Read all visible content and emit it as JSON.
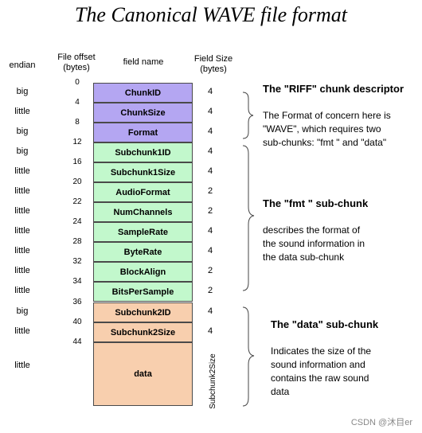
{
  "title": "The Canonical WAVE file format",
  "headers": {
    "endian": "endian",
    "file_offset": [
      "File offset",
      "(bytes)"
    ],
    "field_name": "field name",
    "field_size": [
      "Field Size",
      "(bytes)"
    ]
  },
  "offsets": [
    "0",
    "4",
    "8",
    "12",
    "16",
    "20",
    "22",
    "24",
    "28",
    "32",
    "34",
    "36",
    "40",
    "44"
  ],
  "fields": [
    {
      "name": "ChunkID",
      "endian": "big",
      "size": "4",
      "group": "riff"
    },
    {
      "name": "ChunkSize",
      "endian": "little",
      "size": "4",
      "group": "riff"
    },
    {
      "name": "Format",
      "endian": "big",
      "size": "4",
      "group": "riff"
    },
    {
      "name": "Subchunk1ID",
      "endian": "big",
      "size": "4",
      "group": "fmt"
    },
    {
      "name": "Subchunk1Size",
      "endian": "little",
      "size": "4",
      "group": "fmt"
    },
    {
      "name": "AudioFormat",
      "endian": "little",
      "size": "2",
      "group": "fmt"
    },
    {
      "name": "NumChannels",
      "endian": "little",
      "size": "2",
      "group": "fmt"
    },
    {
      "name": "SampleRate",
      "endian": "little",
      "size": "4",
      "group": "fmt"
    },
    {
      "name": "ByteRate",
      "endian": "little",
      "size": "4",
      "group": "fmt"
    },
    {
      "name": "BlockAlign",
      "endian": "little",
      "size": "2",
      "group": "fmt"
    },
    {
      "name": "BitsPerSample",
      "endian": "little",
      "size": "2",
      "group": "fmt"
    },
    {
      "name": "Subchunk2ID",
      "endian": "big",
      "size": "4",
      "group": "data"
    },
    {
      "name": "Subchunk2Size",
      "endian": "little",
      "size": "4",
      "group": "data"
    },
    {
      "name": "data",
      "endian": "little",
      "size": "Subchunk2Size",
      "group": "data"
    }
  ],
  "sections": {
    "riff": {
      "heading": "The \"RIFF\" chunk descriptor",
      "desc": [
        "The Format of concern here is",
        "\"WAVE\", which requires two",
        "sub-chunks: \"fmt \" and \"data\""
      ]
    },
    "fmt": {
      "heading": "The \"fmt \" sub-chunk",
      "desc": [
        "describes the format of",
        "the sound information in",
        "the data sub-chunk"
      ]
    },
    "data": {
      "heading": "The \"data\" sub-chunk",
      "desc": [
        "Indicates the size of the",
        "sound information and",
        "contains the raw sound",
        "data"
      ]
    }
  },
  "colors": {
    "riff": "#b4a6f2",
    "fmt": "#c2f8cc",
    "data": "#f8cfae"
  },
  "watermark": "CSDN @沐目er"
}
